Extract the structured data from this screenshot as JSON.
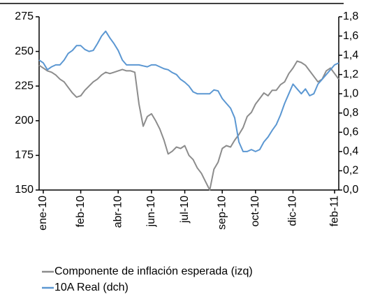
{
  "chart_data": {
    "type": "line",
    "x": [
      null,
      "ene-10",
      null,
      null,
      null,
      null,
      null,
      null,
      null,
      null,
      "feb-10",
      null,
      null,
      null,
      null,
      null,
      null,
      null,
      null,
      "abr-10",
      null,
      null,
      null,
      null,
      null,
      null,
      null,
      "jun-10",
      null,
      null,
      null,
      null,
      null,
      null,
      null,
      "jul-10",
      null,
      null,
      null,
      null,
      null,
      null,
      null,
      null,
      "sep-10",
      null,
      null,
      null,
      null,
      null,
      null,
      null,
      "oct-10",
      null,
      null,
      null,
      null,
      null,
      null,
      null,
      null,
      "dic-10",
      null,
      null,
      null,
      null,
      null,
      null,
      null,
      null,
      null,
      "feb-11",
      null
    ],
    "series": [
      {
        "name": "Componente de inflación esperada (izq)",
        "color": "#8c8c8c",
        "values": [
          240,
          238,
          236,
          235,
          233,
          230,
          228,
          224,
          220,
          217,
          218,
          222,
          225,
          228,
          230,
          233,
          235,
          234,
          235,
          236,
          237,
          236,
          236,
          235,
          212,
          196,
          203,
          205,
          200,
          194,
          186,
          176,
          178,
          181,
          180,
          182,
          175,
          172,
          166,
          162,
          156,
          150,
          165,
          170,
          180,
          182,
          181,
          186,
          190,
          195,
          203,
          206,
          212,
          216,
          220,
          218,
          222,
          222,
          226,
          228,
          234,
          238,
          243,
          242,
          240,
          236,
          232,
          228,
          230,
          236,
          238,
          234,
          230
        ]
      },
      {
        "name": "10A Real (dch)",
        "color": "#5b97d2",
        "axis": "y2",
        "values": [
          1.35,
          1.32,
          1.25,
          1.28,
          1.3,
          1.3,
          1.35,
          1.42,
          1.45,
          1.5,
          1.5,
          1.46,
          1.44,
          1.45,
          1.52,
          1.6,
          1.65,
          1.58,
          1.52,
          1.45,
          1.35,
          1.3,
          1.3,
          1.3,
          1.3,
          1.29,
          1.28,
          1.3,
          1.3,
          1.28,
          1.26,
          1.25,
          1.22,
          1.2,
          1.15,
          1.12,
          1.08,
          1.02,
          1.0,
          1.0,
          1.0,
          1.0,
          1.04,
          1.03,
          0.95,
          0.9,
          0.85,
          0.75,
          0.5,
          0.4,
          0.4,
          0.42,
          0.4,
          0.42,
          0.5,
          0.55,
          0.62,
          0.68,
          0.78,
          0.9,
          1.0,
          1.1,
          1.05,
          1.0,
          1.05,
          0.98,
          1.0,
          1.1,
          1.15,
          1.2,
          1.25,
          1.3,
          1.32
        ]
      }
    ],
    "ylim": [
      150,
      275
    ],
    "yticks": [
      150,
      175,
      200,
      225,
      250,
      275
    ],
    "y2lim": [
      0,
      1.8
    ],
    "y2ticks": [
      {
        "value": 0,
        "label": "0,0"
      },
      {
        "value": 0.2,
        "label": "0,2"
      },
      {
        "value": 0.4,
        "label": "0,4"
      },
      {
        "value": 0.6,
        "label": "0,6"
      },
      {
        "value": 0.8,
        "label": "0,8"
      },
      {
        "value": 1.0,
        "label": "1,0"
      },
      {
        "value": 1.2,
        "label": "1,2"
      },
      {
        "value": 1.4,
        "label": "1,4"
      },
      {
        "value": 1.6,
        "label": "1,6"
      },
      {
        "value": 1.8,
        "label": "1,8"
      }
    ],
    "grid": false
  }
}
